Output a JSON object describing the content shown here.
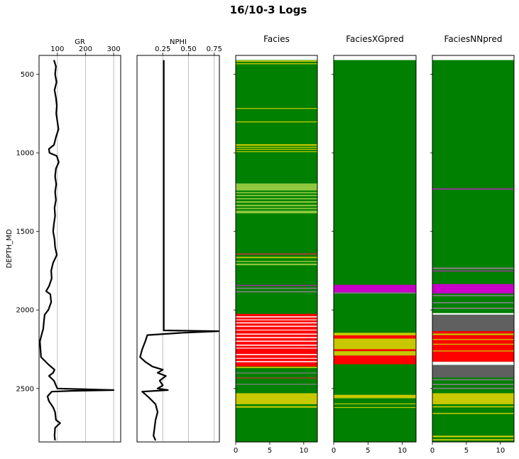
{
  "title": "16/10-3 Logs",
  "chart_data": [
    {
      "type": "line",
      "name": "gr-track",
      "xlabel": "GR",
      "ylabel": "DEPTH_MD",
      "x_ticks": [
        "100",
        "200",
        "300"
      ],
      "x_tick_values": [
        100,
        200,
        300
      ],
      "xlim": [
        35,
        325
      ],
      "ylim": [
        2840,
        380
      ],
      "y_ticks": [
        "500",
        "1000",
        "1500",
        "2000",
        "2500"
      ],
      "y_tick_values": [
        500,
        1000,
        1500,
        2000,
        2500
      ],
      "grid": "vertical",
      "line_color": "#000000",
      "curve": [
        [
          410,
          88
        ],
        [
          450,
          95
        ],
        [
          500,
          92
        ],
        [
          550,
          97
        ],
        [
          600,
          90
        ],
        [
          650,
          95
        ],
        [
          700,
          98
        ],
        [
          750,
          96
        ],
        [
          800,
          100
        ],
        [
          850,
          104
        ],
        [
          900,
          95
        ],
        [
          950,
          88
        ],
        [
          975,
          70
        ],
        [
          1000,
          72
        ],
        [
          1020,
          98
        ],
        [
          1060,
          105
        ],
        [
          1100,
          95
        ],
        [
          1150,
          92
        ],
        [
          1200,
          96
        ],
        [
          1250,
          92
        ],
        [
          1300,
          95
        ],
        [
          1350,
          90
        ],
        [
          1400,
          92
        ],
        [
          1450,
          88
        ],
        [
          1500,
          85
        ],
        [
          1550,
          90
        ],
        [
          1600,
          92
        ],
        [
          1650,
          98
        ],
        [
          1700,
          85
        ],
        [
          1750,
          78
        ],
        [
          1800,
          80
        ],
        [
          1850,
          70
        ],
        [
          1880,
          60
        ],
        [
          1900,
          75
        ],
        [
          1950,
          78
        ],
        [
          2000,
          68
        ],
        [
          2030,
          55
        ],
        [
          2080,
          52
        ],
        [
          2120,
          50
        ],
        [
          2150,
          45
        ],
        [
          2200,
          38
        ],
        [
          2250,
          40
        ],
        [
          2300,
          42
        ],
        [
          2350,
          70
        ],
        [
          2380,
          90
        ],
        [
          2400,
          85
        ],
        [
          2420,
          70
        ],
        [
          2450,
          88
        ],
        [
          2480,
          95
        ],
        [
          2500,
          100
        ],
        [
          2505,
          200
        ],
        [
          2510,
          300
        ],
        [
          2515,
          150
        ],
        [
          2520,
          80
        ],
        [
          2550,
          65
        ],
        [
          2580,
          70
        ],
        [
          2620,
          85
        ],
        [
          2650,
          92
        ],
        [
          2700,
          95
        ],
        [
          2720,
          110
        ],
        [
          2750,
          92
        ],
        [
          2800,
          90
        ],
        [
          2830,
          92
        ]
      ]
    },
    {
      "type": "line",
      "name": "nphi-track",
      "xlabel": "NPHI",
      "x_ticks": [
        "0.25",
        "0.50",
        "0.75"
      ],
      "x_tick_values": [
        0.25,
        0.5,
        0.75
      ],
      "xlim": [
        0.0,
        0.8
      ],
      "ylim": [
        2840,
        380
      ],
      "grid": "vertical",
      "line_color": "#000000",
      "curve": [
        [
          410,
          0.26
        ],
        [
          900,
          0.26
        ],
        [
          1400,
          0.26
        ],
        [
          1800,
          0.26
        ],
        [
          2100,
          0.26
        ],
        [
          2130,
          0.26
        ],
        [
          2135,
          0.79
        ],
        [
          2145,
          0.45
        ],
        [
          2160,
          0.1
        ],
        [
          2200,
          0.08
        ],
        [
          2250,
          0.05
        ],
        [
          2300,
          0.03
        ],
        [
          2330,
          0.08
        ],
        [
          2360,
          0.15
        ],
        [
          2380,
          0.25
        ],
        [
          2400,
          0.2
        ],
        [
          2420,
          0.28
        ],
        [
          2450,
          0.22
        ],
        [
          2480,
          0.25
        ],
        [
          2500,
          0.2
        ],
        [
          2510,
          0.3
        ],
        [
          2520,
          0.05
        ],
        [
          2560,
          0.12
        ],
        [
          2600,
          0.18
        ],
        [
          2650,
          0.2
        ],
        [
          2700,
          0.18
        ],
        [
          2750,
          0.17
        ],
        [
          2800,
          0.16
        ],
        [
          2830,
          0.18
        ]
      ]
    },
    {
      "type": "heatmap",
      "name": "facies-track",
      "title": "Facies",
      "x_ticks": [
        "0",
        "5",
        "10"
      ],
      "x_tick_values": [
        0,
        5,
        10
      ],
      "xlim": [
        0,
        12
      ],
      "ylim": [
        2840,
        380
      ],
      "base_color": "#008000",
      "bands": [
        {
          "from": 410,
          "to": 2030,
          "color": "#008000"
        },
        {
          "from": 412,
          "to": 420,
          "color": "#c8c800"
        },
        {
          "from": 430,
          "to": 436,
          "color": "#c8c800"
        },
        {
          "from": 715,
          "to": 720,
          "color": "#c8c800"
        },
        {
          "from": 800,
          "to": 806,
          "color": "#c8c800"
        },
        {
          "from": 945,
          "to": 955,
          "color": "#c8c800"
        },
        {
          "from": 962,
          "to": 968,
          "color": "#c8c800"
        },
        {
          "from": 975,
          "to": 981,
          "color": "#c8c800"
        },
        {
          "from": 990,
          "to": 995,
          "color": "#c8c800"
        },
        {
          "from": 1195,
          "to": 1240,
          "color": "#90c840"
        },
        {
          "from": 1250,
          "to": 1258,
          "color": "#90c840"
        },
        {
          "from": 1268,
          "to": 1276,
          "color": "#90c840"
        },
        {
          "from": 1288,
          "to": 1296,
          "color": "#90c840"
        },
        {
          "from": 1308,
          "to": 1318,
          "color": "#90c840"
        },
        {
          "from": 1330,
          "to": 1340,
          "color": "#90c840"
        },
        {
          "from": 1350,
          "to": 1358,
          "color": "#90c840"
        },
        {
          "from": 1368,
          "to": 1385,
          "color": "#90c840"
        },
        {
          "from": 1640,
          "to": 1648,
          "color": "#c83232"
        },
        {
          "from": 1662,
          "to": 1670,
          "color": "#c8c800"
        },
        {
          "from": 1688,
          "to": 1695,
          "color": "#90c840"
        },
        {
          "from": 1705,
          "to": 1715,
          "color": "#90c840"
        },
        {
          "from": 1840,
          "to": 1848,
          "color": "#8b3a8b"
        },
        {
          "from": 1858,
          "to": 1866,
          "color": "#808080"
        },
        {
          "from": 1880,
          "to": 1888,
          "color": "#808080"
        },
        {
          "from": 2025,
          "to": 2360,
          "color": "#ff0000"
        },
        {
          "from": 2040,
          "to": 2048,
          "color": "#ffe0e0"
        },
        {
          "from": 2060,
          "to": 2066,
          "color": "#ffe0e0"
        },
        {
          "from": 2078,
          "to": 2086,
          "color": "#ffe0e0"
        },
        {
          "from": 2100,
          "to": 2108,
          "color": "#ffe0e0"
        },
        {
          "from": 2125,
          "to": 2131,
          "color": "#ffe0e0"
        },
        {
          "from": 2150,
          "to": 2158,
          "color": "#ffe0e0"
        },
        {
          "from": 2172,
          "to": 2180,
          "color": "#ffe0e0"
        },
        {
          "from": 2195,
          "to": 2203,
          "color": "#ffe0e0"
        },
        {
          "from": 2220,
          "to": 2228,
          "color": "#ffe0e0"
        },
        {
          "from": 2240,
          "to": 2246,
          "color": "#ffe0e0"
        },
        {
          "from": 2280,
          "to": 2288,
          "color": "#ffe0e0"
        },
        {
          "from": 2305,
          "to": 2311,
          "color": "#ffe0e0"
        },
        {
          "from": 2325,
          "to": 2333,
          "color": "#ffe0e0"
        },
        {
          "from": 2360,
          "to": 2840,
          "color": "#008000"
        },
        {
          "from": 2362,
          "to": 2370,
          "color": "#c8c800"
        },
        {
          "from": 2398,
          "to": 2404,
          "color": "#808080"
        },
        {
          "from": 2430,
          "to": 2436,
          "color": "#c83232"
        },
        {
          "from": 2470,
          "to": 2476,
          "color": "#808080"
        },
        {
          "from": 2530,
          "to": 2600,
          "color": "#c8c800"
        },
        {
          "from": 2612,
          "to": 2622,
          "color": "#c8c800"
        }
      ]
    },
    {
      "type": "heatmap",
      "name": "faciesxgpred-track",
      "title": "FaciesXGpred",
      "x_ticks": [
        "0",
        "5",
        "10"
      ],
      "x_tick_values": [
        0,
        5,
        10
      ],
      "xlim": [
        0,
        12
      ],
      "ylim": [
        2840,
        380
      ],
      "base_color": "#008000",
      "bands": [
        {
          "from": 410,
          "to": 2840,
          "color": "#008000"
        },
        {
          "from": 1840,
          "to": 1888,
          "color": "#c800c8"
        },
        {
          "from": 1888,
          "to": 1896,
          "color": "#808080"
        },
        {
          "from": 2145,
          "to": 2162,
          "color": "#c8c800"
        },
        {
          "from": 2162,
          "to": 2182,
          "color": "#ff0000"
        },
        {
          "from": 2182,
          "to": 2250,
          "color": "#c8c800"
        },
        {
          "from": 2250,
          "to": 2262,
          "color": "#ff0000"
        },
        {
          "from": 2262,
          "to": 2290,
          "color": "#c8c800"
        },
        {
          "from": 2290,
          "to": 2345,
          "color": "#ff0000"
        },
        {
          "from": 2540,
          "to": 2562,
          "color": "#c8c800"
        },
        {
          "from": 2595,
          "to": 2600,
          "color": "#c8c800"
        },
        {
          "from": 2618,
          "to": 2622,
          "color": "#c8c800"
        }
      ]
    },
    {
      "type": "heatmap",
      "name": "faciesnnpred-track",
      "title": "FaciesNNpred",
      "x_ticks": [
        "0",
        "5",
        "10"
      ],
      "x_tick_values": [
        0,
        5,
        10
      ],
      "xlim": [
        0,
        12
      ],
      "ylim": [
        2840,
        380
      ],
      "base_color": "#008000",
      "bands": [
        {
          "from": 410,
          "to": 2840,
          "color": "#008000"
        },
        {
          "from": 1225,
          "to": 1235,
          "color": "#8b3a8b"
        },
        {
          "from": 1730,
          "to": 1740,
          "color": "#808080"
        },
        {
          "from": 1748,
          "to": 1756,
          "color": "#8b3a8b"
        },
        {
          "from": 1835,
          "to": 1895,
          "color": "#c800c8"
        },
        {
          "from": 1905,
          "to": 1913,
          "color": "#808080"
        },
        {
          "from": 1950,
          "to": 1958,
          "color": "#808080"
        },
        {
          "from": 1985,
          "to": 1993,
          "color": "#808080"
        },
        {
          "from": 2020,
          "to": 2030,
          "color": "#ffffff"
        },
        {
          "from": 2030,
          "to": 2135,
          "color": "#606060"
        },
        {
          "from": 2135,
          "to": 2150,
          "color": "#ff0000"
        },
        {
          "from": 2150,
          "to": 2160,
          "color": "#c8c800"
        },
        {
          "from": 2160,
          "to": 2330,
          "color": "#ff0000"
        },
        {
          "from": 2185,
          "to": 2191,
          "color": "#c8c800"
        },
        {
          "from": 2215,
          "to": 2221,
          "color": "#c8c800"
        },
        {
          "from": 2258,
          "to": 2264,
          "color": "#c8c800"
        },
        {
          "from": 2330,
          "to": 2350,
          "color": "#ffffff"
        },
        {
          "from": 2350,
          "to": 2430,
          "color": "#606060"
        },
        {
          "from": 2440,
          "to": 2448,
          "color": "#808080"
        },
        {
          "from": 2470,
          "to": 2478,
          "color": "#808080"
        },
        {
          "from": 2495,
          "to": 2503,
          "color": "#808080"
        },
        {
          "from": 2530,
          "to": 2600,
          "color": "#c8c800"
        },
        {
          "from": 2612,
          "to": 2620,
          "color": "#c8c800"
        },
        {
          "from": 2655,
          "to": 2662,
          "color": "#c8c800"
        },
        {
          "from": 2800,
          "to": 2810,
          "color": "#c8c800"
        },
        {
          "from": 2822,
          "to": 2830,
          "color": "#c8c800"
        }
      ]
    }
  ]
}
